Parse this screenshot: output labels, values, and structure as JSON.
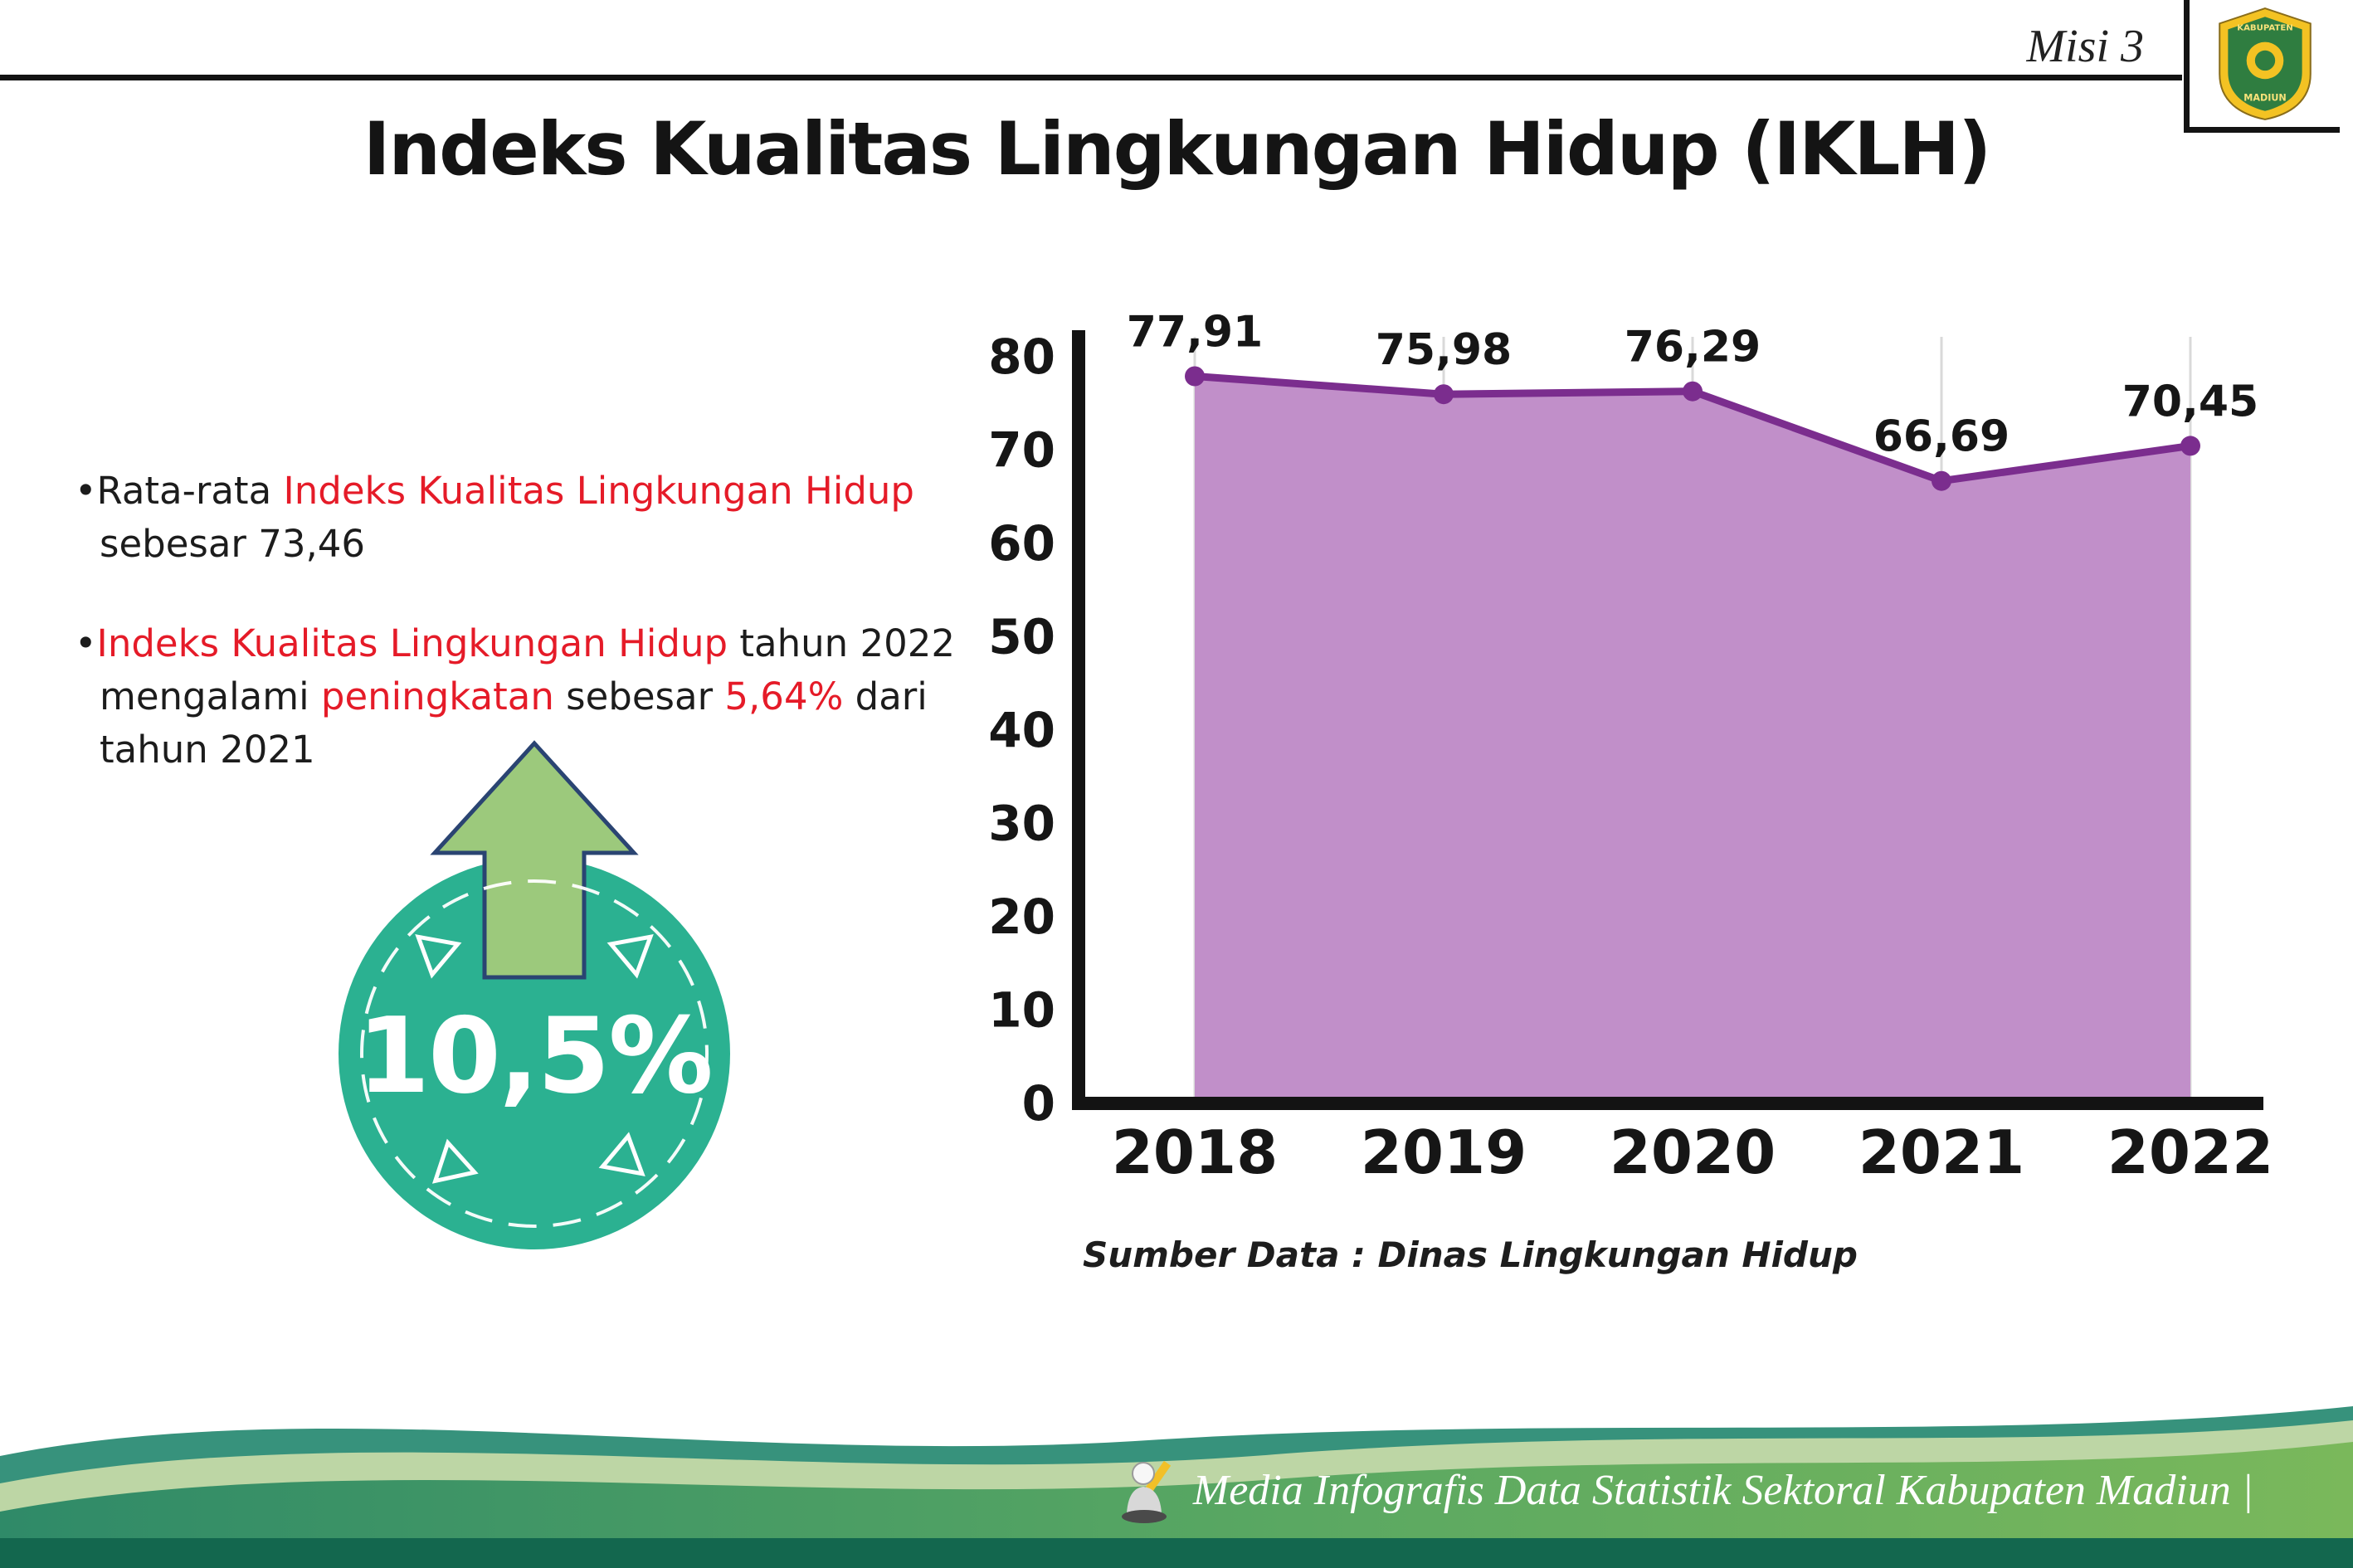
{
  "header": {
    "misi_label": "Misi 3",
    "title": "Indeks Kualitas Lingkungan Hidup (IKLH)"
  },
  "logo": {
    "top_text": "KABUPATEN",
    "bottom_text": "MADIUN"
  },
  "bullets": [
    {
      "marker": "•",
      "segments": [
        {
          "text": "Rata-rata ",
          "color": "dark"
        },
        {
          "text": "Indeks Kualitas Lingkungan Hidup",
          "color": "red"
        },
        {
          "text": " sebesar 73,46",
          "color": "dark"
        }
      ]
    },
    {
      "marker": "•",
      "segments": [
        {
          "text": "Indeks Kualitas Lingkungan Hidup",
          "color": "red"
        },
        {
          "text": " tahun 2022 mengalami ",
          "color": "dark"
        },
        {
          "text": "peningkatan",
          "color": "red"
        },
        {
          "text": " sebesar ",
          "color": "dark"
        },
        {
          "text": "5,64%",
          "color": "red"
        },
        {
          "text": " dari tahun 2021",
          "color": "dark"
        }
      ]
    }
  ],
  "badge": {
    "value": "10,5%",
    "circle_color": "#2bb191",
    "arrow_color": "#9cc97c"
  },
  "chart_data": {
    "type": "area",
    "title": "Indeks Kualitas Lingkungan Hidup (IKLH)",
    "categories": [
      "2018",
      "2019",
      "2020",
      "2021",
      "2022"
    ],
    "values": [
      77.91,
      75.98,
      76.29,
      66.69,
      70.45
    ],
    "value_labels": [
      "77,91",
      "75,98",
      "76,29",
      "66,69",
      "70,45"
    ],
    "xlabel": "",
    "ylabel": "",
    "ylim": [
      0,
      80
    ],
    "yticks": [
      0,
      10,
      20,
      30,
      40,
      50,
      60,
      70,
      80
    ],
    "grid": "vertical",
    "legend": "none",
    "line_color": "#7b2d8e",
    "fill_color": "#c18fc9",
    "source": "Sumber Data : Dinas Lingkungan Hidup"
  },
  "footer": {
    "text": "Media Infografis Data Statistik Sektoral Kabupaten Madiun |"
  }
}
